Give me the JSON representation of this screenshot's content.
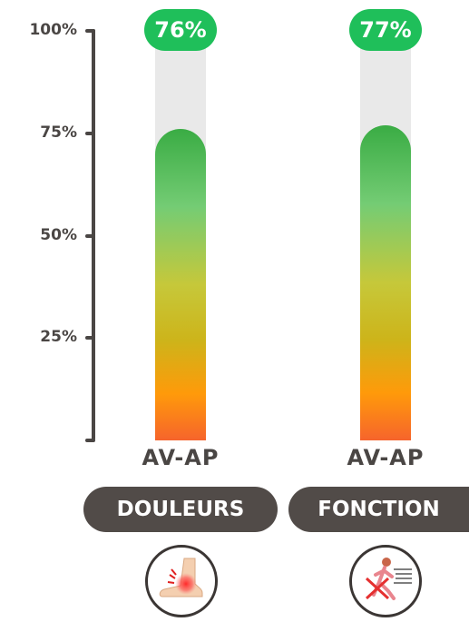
{
  "chart_data": {
    "type": "bar",
    "categories": [
      "DOULEURS",
      "FONCTION"
    ],
    "series": [
      {
        "values": [
          76,
          77
        ]
      }
    ],
    "value_labels": [
      "76%",
      "77%"
    ],
    "ylim": [
      0,
      100
    ],
    "y_ticks": [
      {
        "value": 25,
        "label": "25%"
      },
      {
        "value": 50,
        "label": "50%"
      },
      {
        "value": 75,
        "label": "75%"
      },
      {
        "value": 100,
        "label": "100%"
      }
    ],
    "bar_labels": [
      "AV-AP",
      "AV-AP"
    ],
    "icons": [
      "ankle-pain-icon",
      "runner-injury-icon"
    ],
    "colors": {
      "badge": "#1fbf5a",
      "gradient_top": "#3aac44",
      "gradient_bottom": "#f6642c",
      "track": "#e9e9e9",
      "pill": "#514b48"
    }
  }
}
